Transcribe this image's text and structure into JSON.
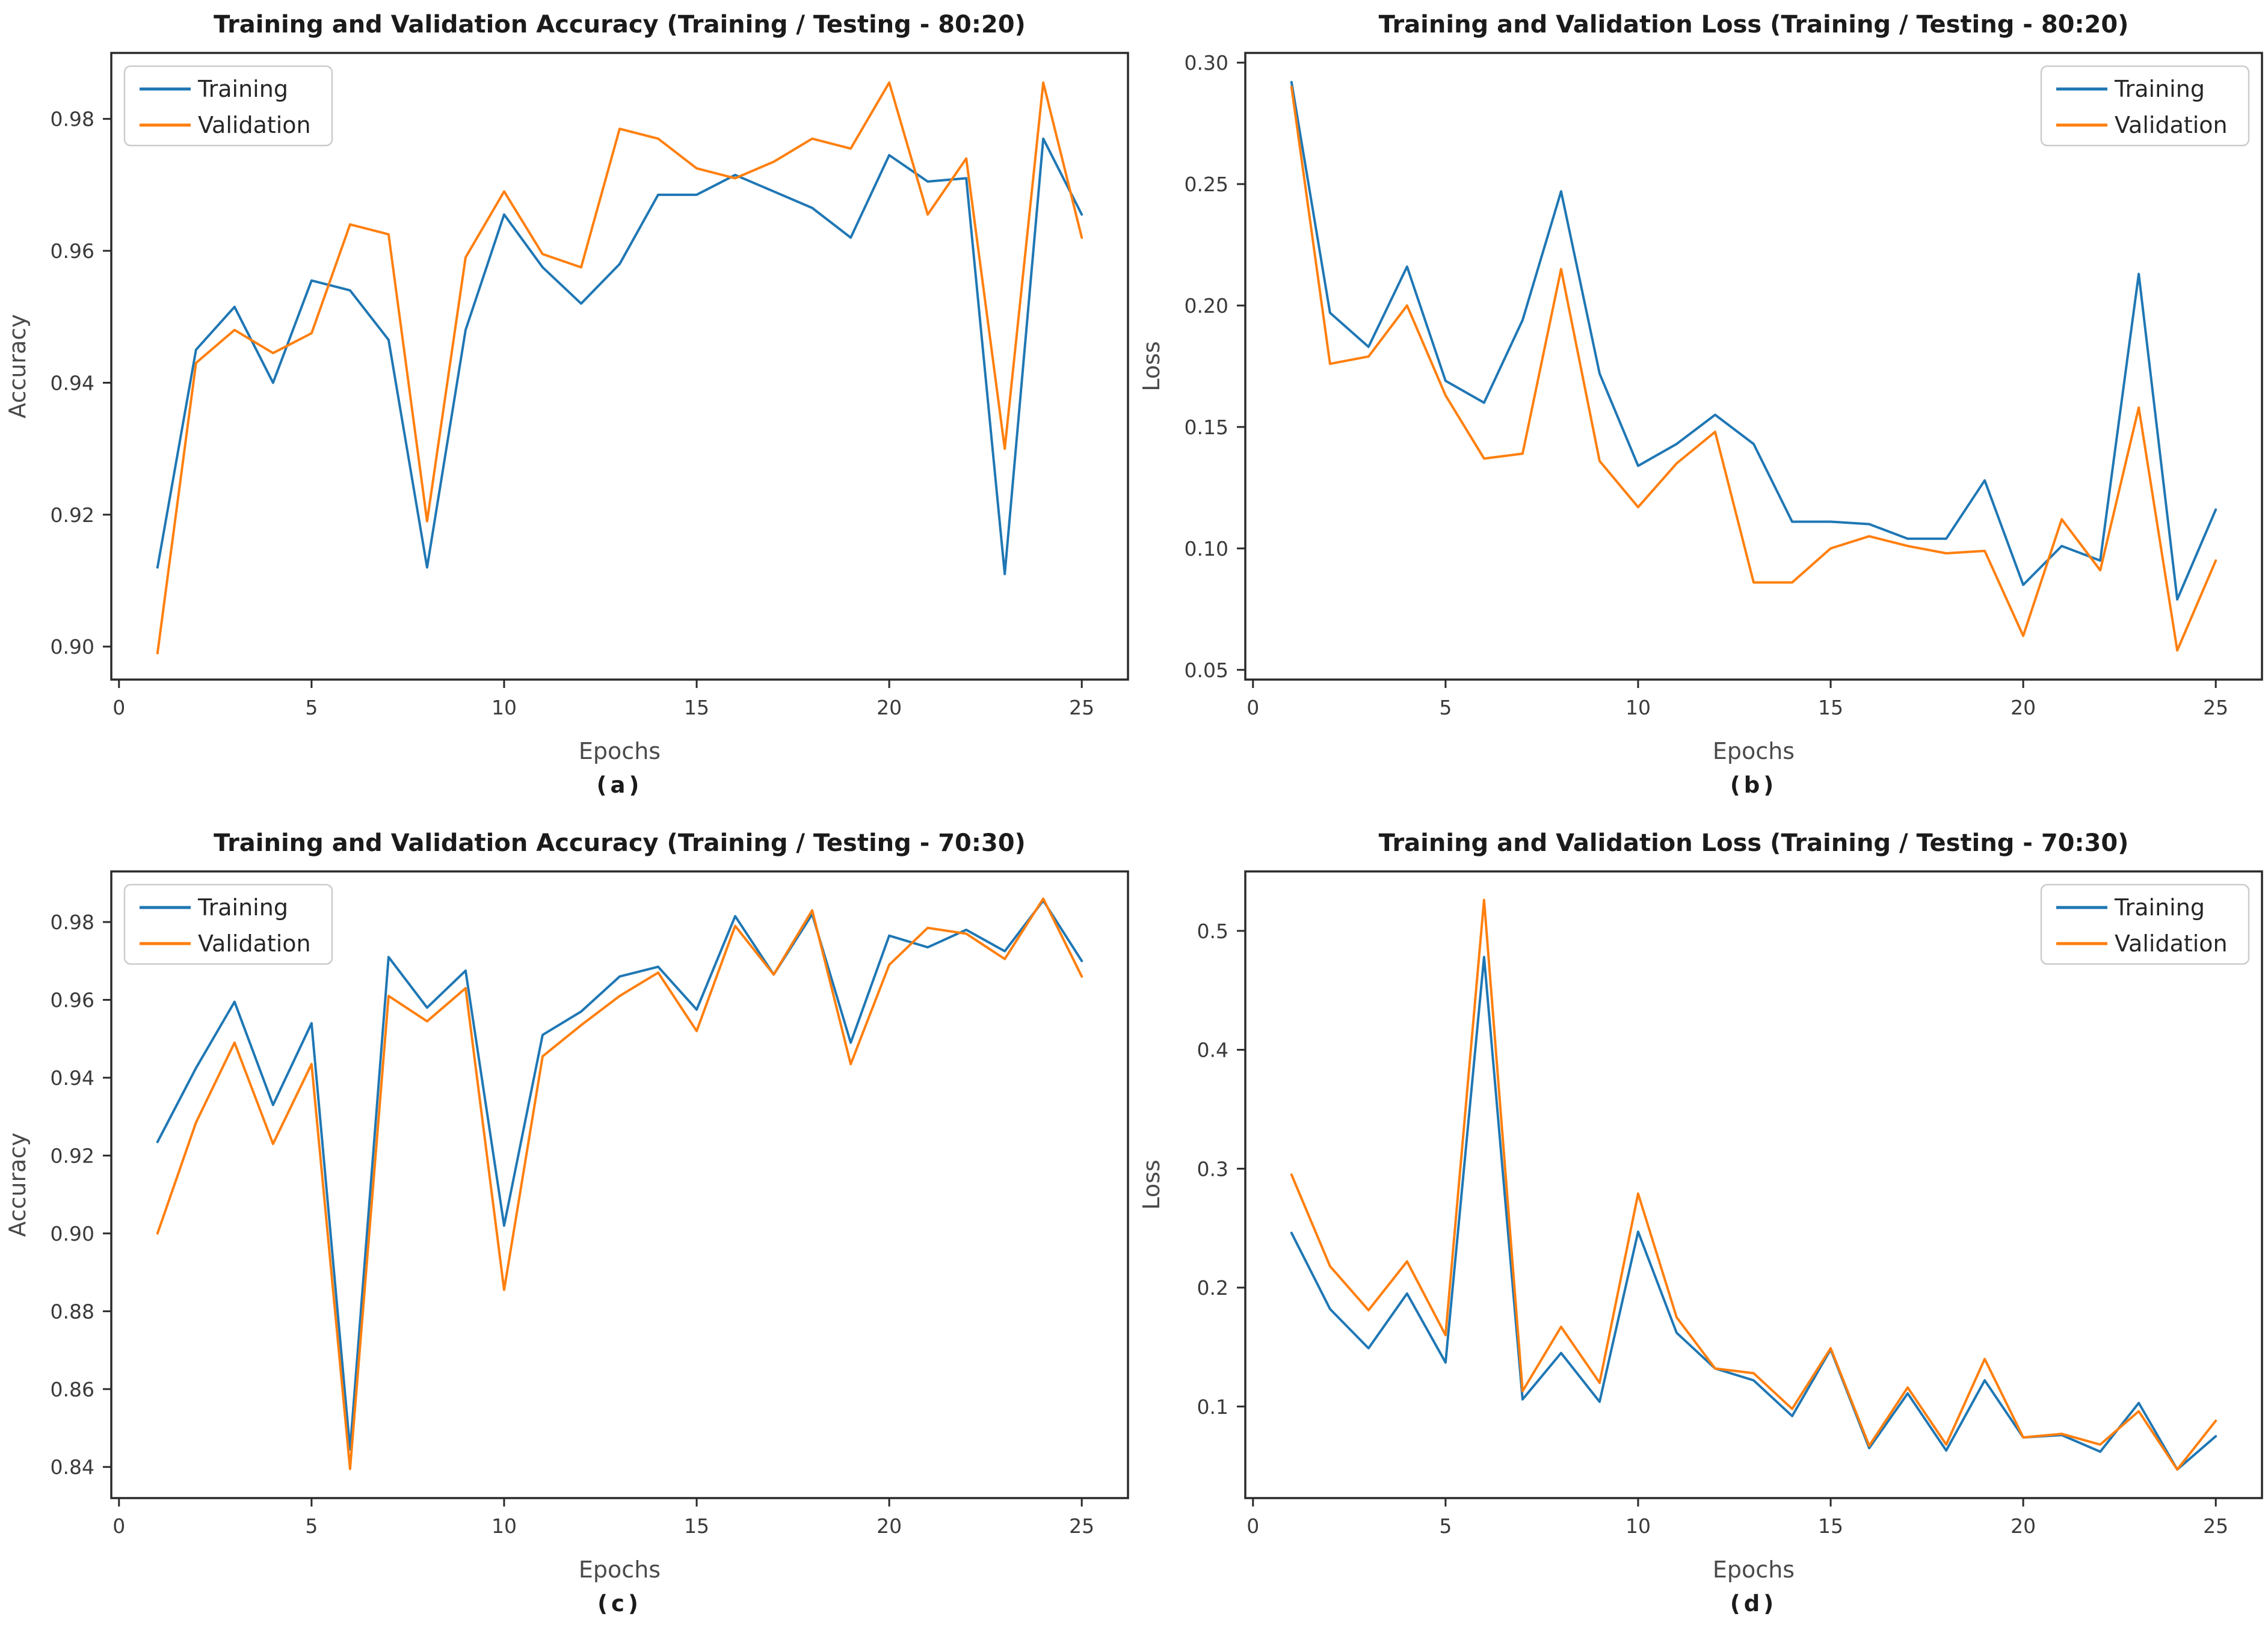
{
  "figure": {
    "background": "#ffffff",
    "text_color": "#1b1b1b",
    "tick_color": "#3a3a3a",
    "label_color": "#4a4a4a",
    "spine_color": "#2a2a2a"
  },
  "chart_data": [
    {
      "id": "a",
      "type": "line",
      "title": "Training and Validation Accuracy (Training / Testing - 80:20)",
      "xlabel": "Epochs",
      "ylabel": "Accuracy",
      "caption": "(a)",
      "grid": false,
      "legend": {
        "position": "upper-left",
        "entries": [
          "Training",
          "Validation"
        ]
      },
      "x": [
        1,
        2,
        3,
        4,
        5,
        6,
        7,
        8,
        9,
        10,
        11,
        12,
        13,
        14,
        15,
        16,
        17,
        18,
        19,
        20,
        21,
        22,
        23,
        24,
        25
      ],
      "xlim": [
        -0.2,
        26.2
      ],
      "ylim": [
        0.895,
        0.99
      ],
      "xticks": [
        0,
        5,
        10,
        15,
        20,
        25
      ],
      "yticks": [
        0.9,
        0.92,
        0.94,
        0.96,
        0.98
      ],
      "ytick_decimals": 2,
      "series": [
        {
          "name": "Training",
          "color": "#1f77b4",
          "values": [
            0.912,
            0.945,
            0.9515,
            0.94,
            0.9555,
            0.954,
            0.9465,
            0.912,
            0.948,
            0.9655,
            0.9575,
            0.952,
            0.958,
            0.9685,
            0.9685,
            0.9715,
            0.969,
            0.9665,
            0.962,
            0.9745,
            0.9705,
            0.971,
            0.911,
            0.977,
            0.9655
          ]
        },
        {
          "name": "Validation",
          "color": "#ff7f0e",
          "values": [
            0.899,
            0.943,
            0.948,
            0.9445,
            0.9475,
            0.964,
            0.9625,
            0.919,
            0.959,
            0.969,
            0.9595,
            0.9575,
            0.9785,
            0.977,
            0.9725,
            0.971,
            0.9735,
            0.977,
            0.9755,
            0.9855,
            0.9655,
            0.974,
            0.93,
            0.9855,
            0.962
          ]
        }
      ]
    },
    {
      "id": "b",
      "type": "line",
      "title": "Training and Validation Loss (Training / Testing - 80:20)",
      "xlabel": "Epochs",
      "ylabel": "Loss",
      "caption": "(b)",
      "grid": false,
      "legend": {
        "position": "upper-right",
        "entries": [
          "Training",
          "Validation"
        ]
      },
      "x": [
        1,
        2,
        3,
        4,
        5,
        6,
        7,
        8,
        9,
        10,
        11,
        12,
        13,
        14,
        15,
        16,
        17,
        18,
        19,
        20,
        21,
        22,
        23,
        24,
        25
      ],
      "xlim": [
        -0.2,
        26.2
      ],
      "ylim": [
        0.046,
        0.304
      ],
      "xticks": [
        0,
        5,
        10,
        15,
        20,
        25
      ],
      "yticks": [
        0.05,
        0.1,
        0.15,
        0.2,
        0.25,
        0.3
      ],
      "ytick_decimals": 2,
      "series": [
        {
          "name": "Training",
          "color": "#1f77b4",
          "values": [
            0.292,
            0.197,
            0.183,
            0.216,
            0.169,
            0.16,
            0.194,
            0.247,
            0.172,
            0.134,
            0.143,
            0.155,
            0.143,
            0.111,
            0.111,
            0.11,
            0.104,
            0.104,
            0.128,
            0.085,
            0.101,
            0.095,
            0.213,
            0.079,
            0.116
          ]
        },
        {
          "name": "Validation",
          "color": "#ff7f0e",
          "values": [
            0.29,
            0.176,
            0.179,
            0.2,
            0.163,
            0.137,
            0.139,
            0.215,
            0.136,
            0.117,
            0.135,
            0.148,
            0.086,
            0.086,
            0.1,
            0.105,
            0.101,
            0.098,
            0.099,
            0.064,
            0.112,
            0.091,
            0.158,
            0.058,
            0.095
          ]
        }
      ]
    },
    {
      "id": "c",
      "type": "line",
      "title": "Training and Validation Accuracy (Training / Testing - 70:30)",
      "xlabel": "Epochs",
      "ylabel": "Accuracy",
      "caption": "(c)",
      "grid": false,
      "legend": {
        "position": "upper-left",
        "entries": [
          "Training",
          "Validation"
        ]
      },
      "x": [
        1,
        2,
        3,
        4,
        5,
        6,
        7,
        8,
        9,
        10,
        11,
        12,
        13,
        14,
        15,
        16,
        17,
        18,
        19,
        20,
        21,
        22,
        23,
        24,
        25
      ],
      "xlim": [
        -0.2,
        26.2
      ],
      "ylim": [
        0.832,
        0.993
      ],
      "xticks": [
        0,
        5,
        10,
        15,
        20,
        25
      ],
      "yticks": [
        0.84,
        0.86,
        0.88,
        0.9,
        0.92,
        0.94,
        0.96,
        0.98
      ],
      "ytick_decimals": 2,
      "series": [
        {
          "name": "Training",
          "color": "#1f77b4",
          "values": [
            0.9235,
            0.9425,
            0.9595,
            0.933,
            0.954,
            0.8445,
            0.971,
            0.958,
            0.9675,
            0.902,
            0.951,
            0.957,
            0.966,
            0.9685,
            0.9575,
            0.9815,
            0.9665,
            0.982,
            0.949,
            0.9765,
            0.9735,
            0.978,
            0.9725,
            0.9855,
            0.97
          ]
        },
        {
          "name": "Validation",
          "color": "#ff7f0e",
          "values": [
            0.9,
            0.9285,
            0.949,
            0.923,
            0.9435,
            0.8395,
            0.961,
            0.9545,
            0.963,
            0.8855,
            0.9455,
            0.9535,
            0.961,
            0.967,
            0.952,
            0.979,
            0.9665,
            0.983,
            0.9435,
            0.969,
            0.9785,
            0.977,
            0.9705,
            0.986,
            0.966
          ]
        }
      ]
    },
    {
      "id": "d",
      "type": "line",
      "title": "Training and Validation Loss (Training / Testing - 70:30)",
      "xlabel": "Epochs",
      "ylabel": "Loss",
      "caption": "(d)",
      "grid": false,
      "legend": {
        "position": "upper-right",
        "entries": [
          "Training",
          "Validation"
        ]
      },
      "x": [
        1,
        2,
        3,
        4,
        5,
        6,
        7,
        8,
        9,
        10,
        11,
        12,
        13,
        14,
        15,
        16,
        17,
        18,
        19,
        20,
        21,
        22,
        23,
        24,
        25
      ],
      "xlim": [
        -0.2,
        26.2
      ],
      "ylim": [
        0.023,
        0.55
      ],
      "xticks": [
        0,
        5,
        10,
        15,
        20,
        25
      ],
      "yticks": [
        0.1,
        0.2,
        0.3,
        0.4,
        0.5
      ],
      "ytick_decimals": 1,
      "series": [
        {
          "name": "Training",
          "color": "#1f77b4",
          "values": [
            0.246,
            0.182,
            0.149,
            0.195,
            0.137,
            0.478,
            0.106,
            0.145,
            0.104,
            0.247,
            0.162,
            0.132,
            0.122,
            0.092,
            0.148,
            0.065,
            0.111,
            0.063,
            0.122,
            0.074,
            0.076,
            0.062,
            0.103,
            0.047,
            0.075
          ]
        },
        {
          "name": "Validation",
          "color": "#ff7f0e",
          "values": [
            0.295,
            0.218,
            0.181,
            0.222,
            0.16,
            0.526,
            0.113,
            0.167,
            0.12,
            0.279,
            0.175,
            0.132,
            0.128,
            0.098,
            0.149,
            0.067,
            0.116,
            0.068,
            0.14,
            0.074,
            0.077,
            0.068,
            0.096,
            0.047,
            0.088
          ]
        }
      ]
    }
  ]
}
